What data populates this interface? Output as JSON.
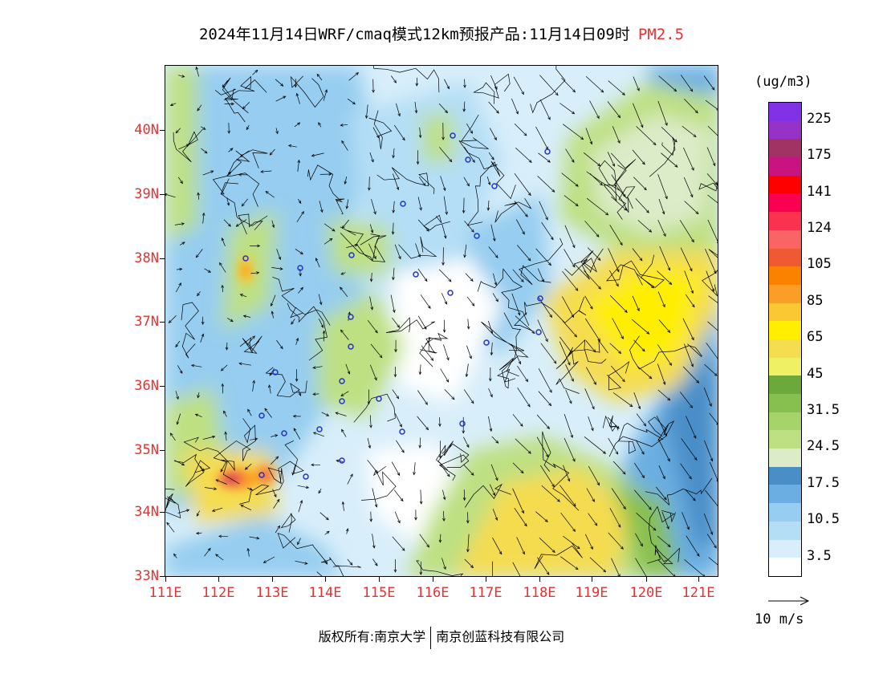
{
  "title": {
    "text": "2024年11月14日WRF/cmaq模式12km预报产品:11月14日09时",
    "pollutant": "PM2.5"
  },
  "colorbar": {
    "unit": "(ug/m3)",
    "colors": [
      "#ffffff",
      "#d8eefa",
      "#b4def6",
      "#96cdf0",
      "#6aaee2",
      "#4a8ec8",
      "#dcebc8",
      "#bee082",
      "#a6d46a",
      "#88c050",
      "#6ca83c",
      "#f0f064",
      "#f5dc50",
      "#ffee00",
      "#fac832",
      "#fa9e28",
      "#fa8200",
      "#f05a32",
      "#fa6464",
      "#fa3250",
      "#fa0050",
      "#ff0000",
      "#c81480",
      "#a03264",
      "#9632c8",
      "#8232e6"
    ],
    "labels": [
      "3.5",
      "10.5",
      "17.5",
      "24.5",
      "31.5",
      "45",
      "65",
      "85",
      "105",
      "124",
      "141",
      "175",
      "225"
    ]
  },
  "axes": {
    "lat_labels": [
      "40N",
      "39N",
      "38N",
      "37N",
      "36N",
      "35N",
      "34N",
      "33N"
    ],
    "lon_labels": [
      "111E",
      "112E",
      "113E",
      "114E",
      "115E",
      "116E",
      "117E",
      "118E",
      "119E",
      "120E",
      "121E"
    ]
  },
  "reference_vector": {
    "label": "10 m/s"
  },
  "footer": {
    "left": "版权所有:南京大学",
    "right": "南京创蓝科技有限公司"
  },
  "colors": {
    "axis_label": "#e63232",
    "station": "#2233cc"
  }
}
